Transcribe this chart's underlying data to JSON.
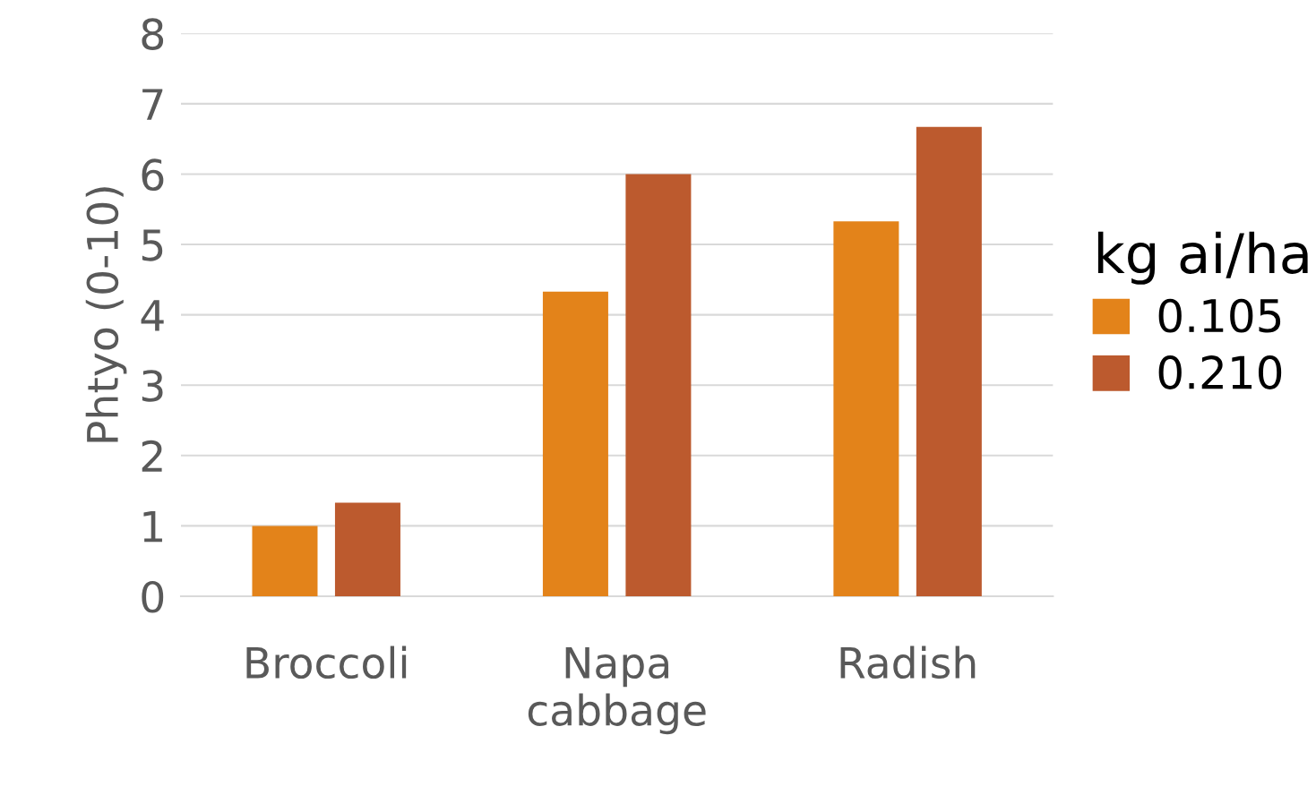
{
  "chart_data": {
    "type": "bar",
    "ylabel": "Phtyo (0-10)",
    "legend_title": "kg ai/ha",
    "categories": [
      "Broccoli",
      "Napa\ncabbage",
      "Radish"
    ],
    "series": [
      {
        "name": "0.105",
        "color": "#e3831a",
        "values": [
          1.0,
          4.33,
          5.33
        ]
      },
      {
        "name": "0.210",
        "color": "#bc5a2e",
        "values": [
          1.33,
          6.0,
          6.67
        ]
      }
    ],
    "ylim": [
      0,
      8
    ],
    "yticks": [
      0,
      1,
      2,
      3,
      4,
      5,
      6,
      7,
      8
    ],
    "grid": "y",
    "legend": "right"
  }
}
